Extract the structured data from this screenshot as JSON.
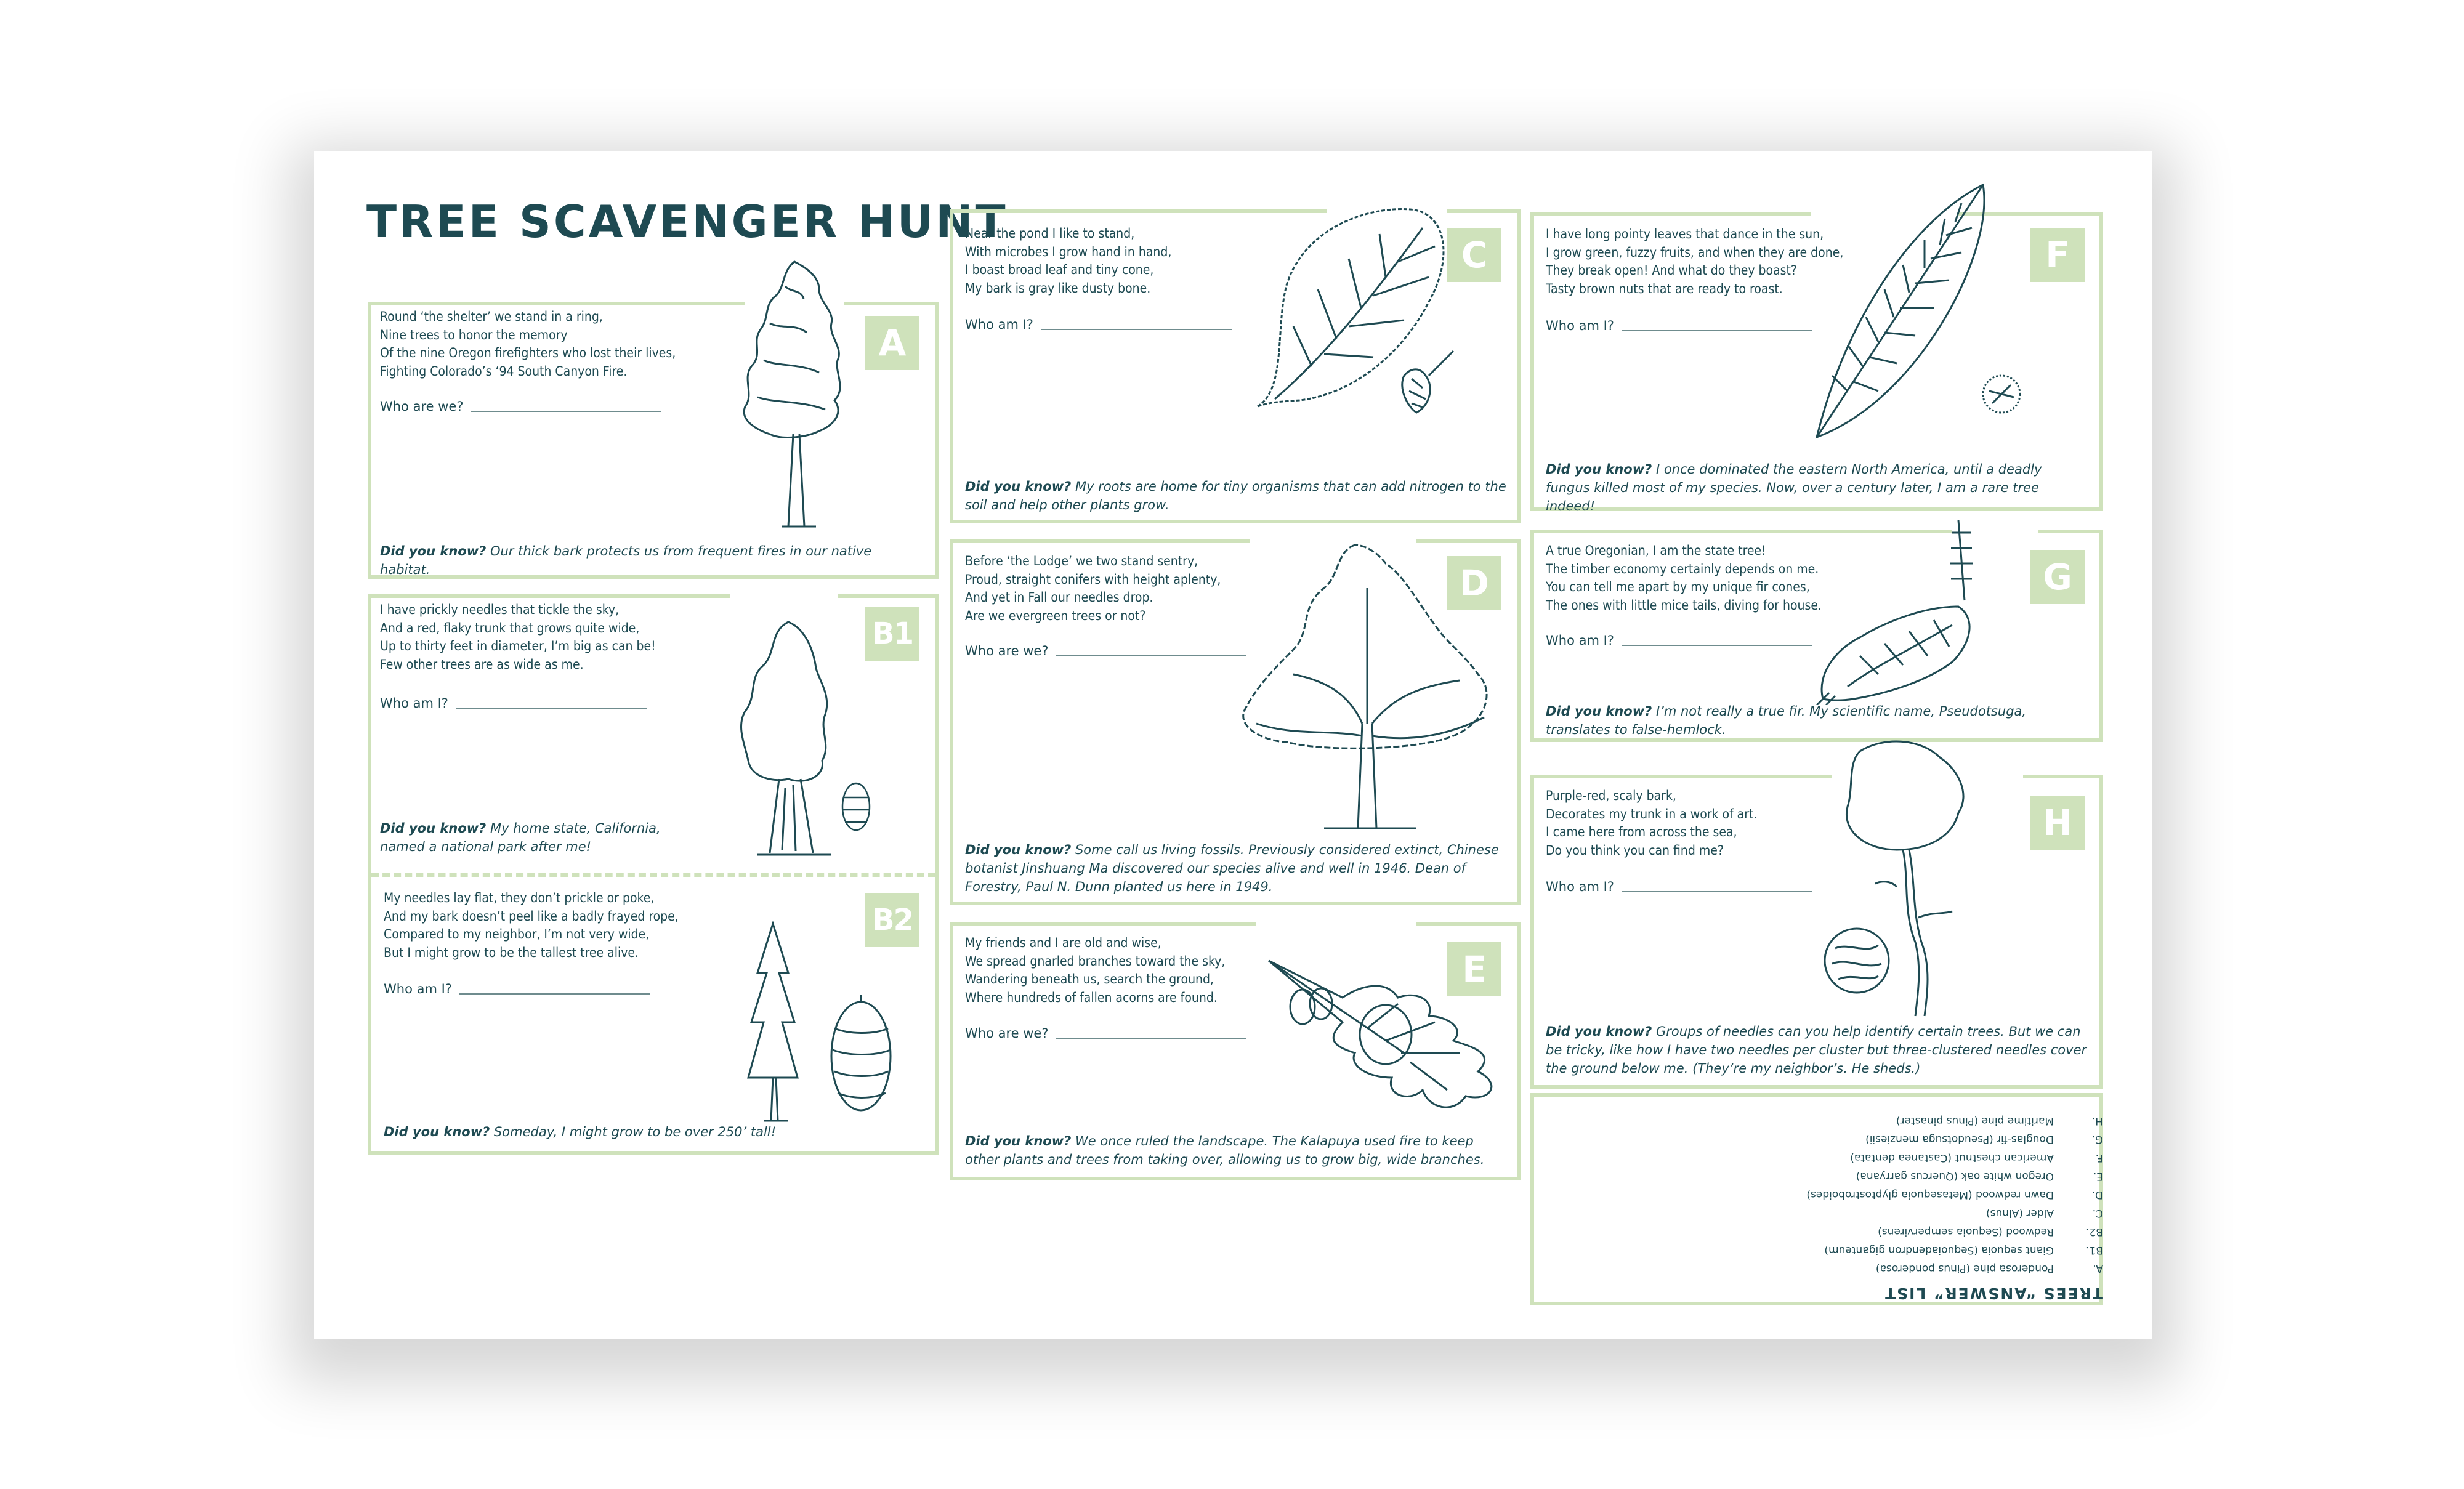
{
  "title": "TREE SCAVENGER HUNT",
  "cards": {
    "a": {
      "badge": "A",
      "poem": "Round ‘the shelter’ we stand in a ring,\nNine trees to honor the memory\nOf the nine Oregon firefighters who lost their lives,\nFighting Colorado’s ‘94 South Canyon Fire.",
      "who": "Who are we?",
      "dyk_label": "Did you know?",
      "dyk": "Our thick bark protects us from frequent fires in our native habitat."
    },
    "b1": {
      "badge": "B1",
      "poem": "I have prickly needles that tickle the sky,\nAnd a red, flaky trunk that grows quite wide,\nUp to thirty feet in diameter, I’m big as can be!\nFew other trees are as wide as me.",
      "who": "Who am I?",
      "dyk_label": "Did you know?",
      "dyk": "My home state, California, named a national park after me!"
    },
    "b2": {
      "badge": "B2",
      "poem": "My needles lay flat, they don’t prickle or poke,\nAnd my bark doesn’t peel like a badly frayed rope,\nCompared to my neighbor, I’m not very wide,\nBut I might grow to be the tallest tree alive.",
      "who": "Who am I?",
      "dyk_label": "Did you know?",
      "dyk": "Someday, I might grow to be over 250’ tall!"
    },
    "c": {
      "badge": "C",
      "poem": "Near the pond I like to stand,\nWith microbes I grow hand in hand,\nI boast broad leaf and tiny cone,\nMy bark is gray like dusty bone.",
      "who": "Who am I?",
      "dyk_label": "Did you know?",
      "dyk": "My roots are home for tiny organisms that can add nitrogen to the soil and help other plants grow."
    },
    "d": {
      "badge": "D",
      "poem": "Before ‘the Lodge’ we two stand sentry,\nProud, straight conifers with height aplenty,\nAnd yet in Fall our needles drop.\nAre we evergreen trees or not?",
      "who": "Who are we?",
      "dyk_label": "Did you know?",
      "dyk": "Some call us living fossils. Previously considered extinct, Chinese botanist Jinshuang Ma discovered our species alive and well in 1946. Dean of Forestry, Paul N. Dunn planted us here in 1949."
    },
    "e": {
      "badge": "E",
      "poem": "My friends and I are old and wise,\nWe spread gnarled branches toward the sky,\nWandering beneath us, search the ground,\nWhere hundreds of fallen acorns are found.",
      "who": "Who are we?",
      "dyk_label": "Did you know?",
      "dyk": "We once ruled the landscape. The Kalapuya used fire to keep other plants and trees from taking over, allowing us to grow big, wide branches."
    },
    "f": {
      "badge": "F",
      "poem": "I have long pointy leaves that dance in the sun,\nI grow green, fuzzy fruits, and when they are done,\nThey break open! And what do they boast?\nTasty brown nuts that are ready to roast.",
      "who": "Who am I?",
      "dyk_label": "Did you know?",
      "dyk": "I once dominated the eastern North America, until a deadly fungus killed most of my species. Now, over a century later, I am a rare tree indeed!"
    },
    "g": {
      "badge": "G",
      "poem": "A true Oregonian, I am the state tree!\nThe timber economy certainly depends on me.\nYou can tell me apart by my unique fir cones,\nThe ones with little mice tails, diving for house.",
      "who": "Who am I?",
      "dyk_label": "Did you know?",
      "dyk": "I’m not really a true fir. My scientific name, Pseudotsuga, translates to false-hemlock."
    },
    "h": {
      "badge": "H",
      "poem": "Purple-red, scaly bark,\nDecorates my trunk in a work of art.\nI came here from across the sea,\nDo you think you can find me?",
      "who": "Who am I?",
      "dyk_label": "Did you know?",
      "dyk": "Groups of needles can you help identify certain trees. But we can be tricky, like how I have two needles per cluster but three-clustered needles cover the ground below me. (They’re my neighbor’s. He sheds.)"
    }
  },
  "answer_list": {
    "heading": "TREES “ANSWER” LIST",
    "items": [
      {
        "key": "A.",
        "text": "Ponderosa pine (Pinus ponderosa)"
      },
      {
        "key": "B1.",
        "text": "Giant sequoia (Sequoiadendron giganteum)"
      },
      {
        "key": "B2.",
        "text": "Redwood (Sequoia sempervirens)"
      },
      {
        "key": "C.",
        "text": "Alder (Alnus)"
      },
      {
        "key": "D.",
        "text": "Dawn redwood (Metasequoia glyptostroboides)"
      },
      {
        "key": "E.",
        "text": "Oregon white oak (Quercus garryana)"
      },
      {
        "key": "F.",
        "text": "American chestnut (Castanea dentata)"
      },
      {
        "key": "G.",
        "text": "Douglas-fir (Pseudotsuga menziesii)"
      },
      {
        "key": "H.",
        "text": "Maritime pine (Pinus pinaster)"
      }
    ]
  },
  "colors": {
    "ink": "#1e4a52",
    "frame": "#cfe2bb",
    "badge": "#cfe2bb"
  }
}
